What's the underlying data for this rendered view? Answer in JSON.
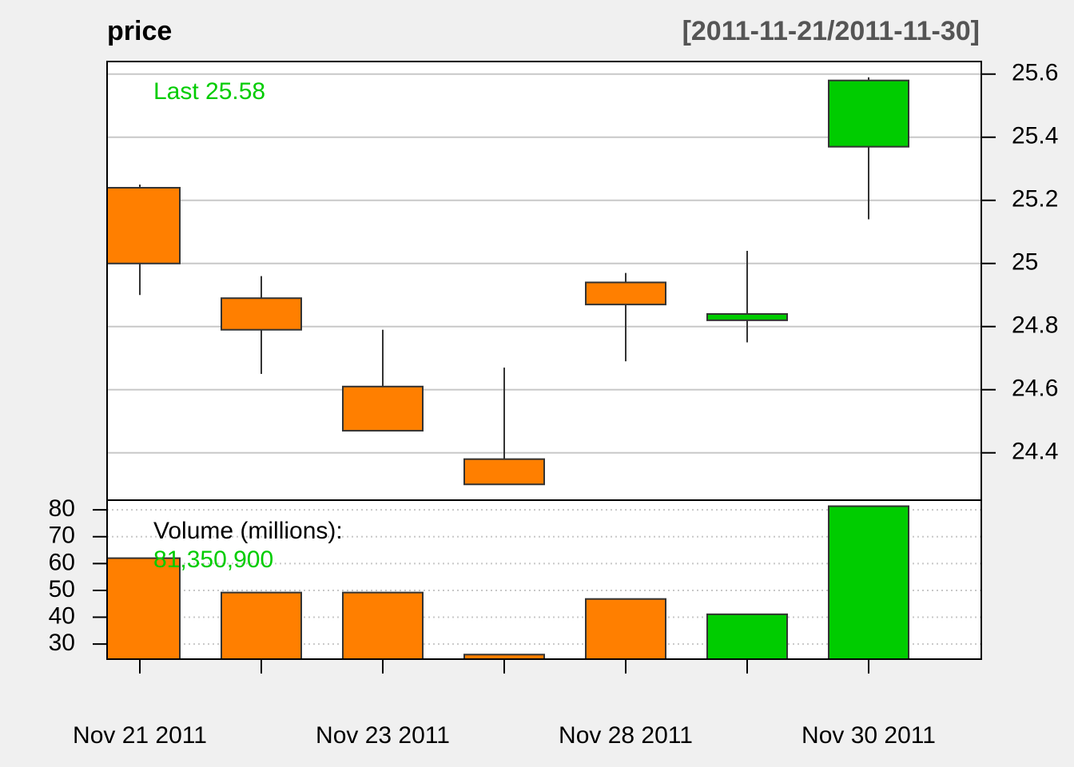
{
  "chart_data": [
    {
      "type": "candlestick",
      "title": "price",
      "subtitle": "[2011-11-21/2011-11-30]",
      "annotation": "Last 25.58",
      "open": [
        25.24,
        24.89,
        24.61,
        24.38,
        24.94,
        24.82,
        25.37
      ],
      "high": [
        25.25,
        24.96,
        24.79,
        24.67,
        24.97,
        25.04,
        25.59
      ],
      "low": [
        24.9,
        24.65,
        24.47,
        24.3,
        24.69,
        24.75,
        25.14
      ],
      "close": [
        25.0,
        24.79,
        24.47,
        24.3,
        24.87,
        24.84,
        25.58
      ],
      "up_color": "#00cc00",
      "down_color": "#ff7f00",
      "ylim": [
        24.25,
        25.64
      ],
      "yticks": [
        24.4,
        24.6,
        24.8,
        25.0,
        25.2,
        25.4,
        25.6
      ],
      "grid": true
    },
    {
      "type": "bar",
      "annotation": "Volume (millions):",
      "last_label": "81,350,900",
      "categories": [
        "Nov 21 2011",
        null,
        "Nov 23 2011",
        null,
        "Nov 28 2011",
        null,
        "Nov 30 2011"
      ],
      "values": [
        62.0,
        49.2,
        49.2,
        26.1,
        46.8,
        41.1,
        81.3509
      ],
      "ylim": [
        24.4,
        83.6
      ],
      "yticks": [
        30,
        40,
        50,
        60,
        70,
        80
      ],
      "grid": true
    }
  ]
}
